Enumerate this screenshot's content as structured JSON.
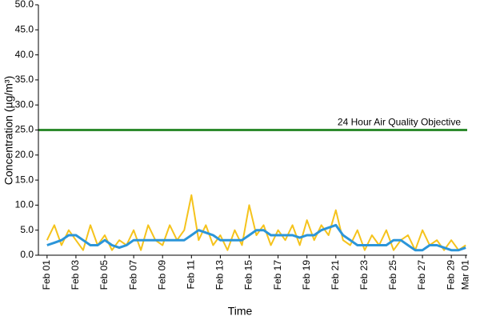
{
  "chart_data": {
    "type": "line",
    "x_label": "Time",
    "y_label": "Concentration (µg/m³)",
    "xlim": [
      -0.6,
      29.1
    ],
    "xticks": [
      {
        "value": 0,
        "label": "Feb 01"
      },
      {
        "value": 2,
        "label": "Feb 03"
      },
      {
        "value": 4,
        "label": "Feb 05"
      },
      {
        "value": 6,
        "label": "Feb 07"
      },
      {
        "value": 8,
        "label": "Feb 09"
      },
      {
        "value": 10,
        "label": "Feb 11"
      },
      {
        "value": 12,
        "label": "Feb 13"
      },
      {
        "value": 14,
        "label": "Feb 15"
      },
      {
        "value": 16,
        "label": "Feb 17"
      },
      {
        "value": 18,
        "label": "Feb 19"
      },
      {
        "value": 20,
        "label": "Feb 21"
      },
      {
        "value": 22,
        "label": "Feb 23"
      },
      {
        "value": 24,
        "label": "Feb 25"
      },
      {
        "value": 26,
        "label": "Feb 27"
      },
      {
        "value": 28,
        "label": "Feb 29"
      },
      {
        "value": 29,
        "label": "Mar 01"
      }
    ],
    "ylim": [
      0,
      50
    ],
    "yticks": [
      {
        "value": 0,
        "label": "0.0"
      },
      {
        "value": 5,
        "label": "5.0"
      },
      {
        "value": 10,
        "label": "10.0"
      },
      {
        "value": 15,
        "label": "15.0"
      },
      {
        "value": 20,
        "label": "20.0"
      },
      {
        "value": 25,
        "label": "25.0"
      },
      {
        "value": 30,
        "label": "30.0"
      },
      {
        "value": 35,
        "label": "35.0"
      },
      {
        "value": 40,
        "label": "40.0"
      },
      {
        "value": 45,
        "label": "45.0"
      },
      {
        "value": 50,
        "label": "50.0"
      }
    ],
    "objective": {
      "value": 25,
      "label": "24 Hour Air Quality Objective",
      "color": "#2e8b2e"
    },
    "x": [
      0,
      0.5,
      1,
      1.5,
      2,
      2.5,
      3,
      3.5,
      4,
      4.5,
      5,
      5.5,
      6,
      6.5,
      7,
      7.5,
      8,
      8.5,
      9,
      9.5,
      10,
      10.5,
      11,
      11.5,
      12,
      12.5,
      13,
      13.5,
      14,
      14.5,
      15,
      15.5,
      16,
      16.5,
      17,
      17.5,
      18,
      18.5,
      19,
      19.5,
      20,
      20.5,
      21,
      21.5,
      22,
      22.5,
      23,
      23.5,
      24,
      24.5,
      25,
      25.5,
      26,
      26.5,
      27,
      27.5,
      28,
      28.5,
      29
    ],
    "series": [
      {
        "color": "#f5c31c",
        "width": 2,
        "values": [
          3,
          6,
          2,
          5,
          3,
          1,
          6,
          2,
          4,
          1,
          3,
          2,
          5,
          1,
          6,
          3,
          2,
          6,
          3,
          5,
          12,
          3,
          6,
          2,
          4,
          1,
          5,
          2,
          10,
          4,
          6,
          2,
          5,
          3,
          6,
          2,
          7,
          3,
          6,
          4,
          9,
          3,
          2,
          5,
          1,
          4,
          2,
          5,
          1,
          3,
          4,
          1,
          5,
          2,
          3,
          1,
          3,
          1,
          2
        ]
      },
      {
        "color": "#2b95d9",
        "width": 3,
        "values": [
          2,
          2.5,
          3,
          4,
          4,
          3,
          2,
          2,
          3,
          2,
          1.5,
          2,
          3,
          3,
          3,
          3,
          3,
          3,
          3,
          3,
          4,
          5,
          4.5,
          4,
          3,
          3,
          3,
          3,
          4,
          5,
          5,
          4,
          4,
          4,
          4,
          3.5,
          4,
          4,
          5,
          5.5,
          6,
          4,
          3,
          2,
          2,
          2,
          2,
          2,
          3,
          3,
          2,
          1,
          1,
          2,
          2,
          1.5,
          1,
          1,
          1.5
        ]
      }
    ]
  }
}
